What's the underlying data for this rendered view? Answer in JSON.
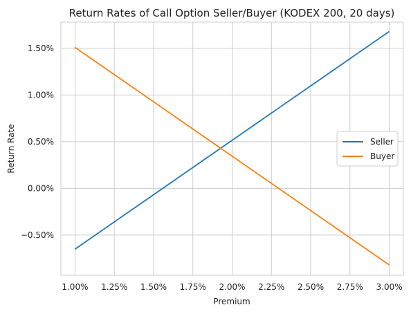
{
  "chart_data": {
    "type": "line",
    "title": "Return Rates of Call Option Seller/Buyer (KODEX 200, 20 days)",
    "xlabel": "Premium",
    "ylabel": "Return Rate",
    "x": [
      0.01,
      0.03
    ],
    "x_ticks": [
      0.01,
      0.0125,
      0.015,
      0.0175,
      0.02,
      0.0225,
      0.025,
      0.0275,
      0.03
    ],
    "x_tick_labels": [
      "1.00%",
      "1.25%",
      "1.50%",
      "1.75%",
      "2.00%",
      "2.25%",
      "2.50%",
      "2.75%",
      "3.00%"
    ],
    "y_ticks": [
      -0.005,
      0.0,
      0.005,
      0.01,
      0.015
    ],
    "y_tick_labels": [
      "−0.50%",
      "0.00%",
      "0.50%",
      "1.00%",
      "1.50%"
    ],
    "xlim": [
      0.0091,
      0.0309
    ],
    "ylim": [
      -0.0093,
      0.0178
    ],
    "grid": true,
    "legend_position": "center-right",
    "series": [
      {
        "name": "Seller",
        "color": "#1f77b4",
        "values": [
          -0.0065,
          0.0168
        ]
      },
      {
        "name": "Buyer",
        "color": "#ff7f0e",
        "values": [
          0.0151,
          -0.0082
        ]
      }
    ]
  }
}
